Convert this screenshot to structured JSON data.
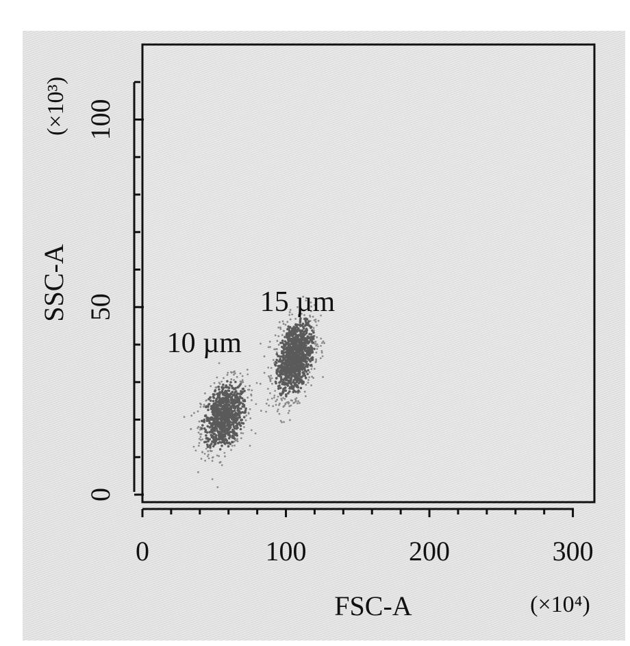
{
  "chart_data": {
    "type": "scatter",
    "title": "",
    "xlabel": "FSC-A",
    "ylabel": "SSC-A",
    "x_unit": "(×10⁴)",
    "y_unit": "(×10³)",
    "xlim": [
      0,
      315
    ],
    "ylim": [
      -2,
      120
    ],
    "xticks": [
      "0",
      "100",
      "200",
      "300"
    ],
    "xtick_values": [
      0,
      100,
      200,
      300
    ],
    "yticks": [
      "0",
      "50",
      "100"
    ],
    "ytick_values": [
      0,
      50,
      100
    ],
    "x_minor_step": 20,
    "y_minor_step": 10,
    "grid": false,
    "series": [
      {
        "label_text": "10 µm",
        "center": [
          57,
          21
        ],
        "spread": [
          8,
          4.5
        ],
        "tilt": 0.35,
        "points": 900,
        "color": "#5a5a5a",
        "label_at": [
          17,
          38
        ]
      },
      {
        "label_text": "15 µm",
        "center": [
          106,
          36.5
        ],
        "spread": [
          7,
          5
        ],
        "tilt": 0.4,
        "points": 1100,
        "color": "#5a5a5a",
        "label_at": [
          82,
          49
        ]
      }
    ]
  }
}
